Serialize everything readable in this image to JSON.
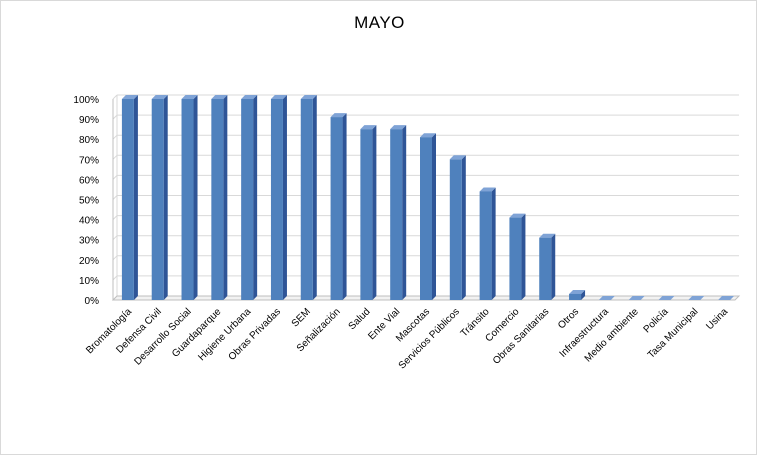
{
  "chart_data": {
    "type": "bar",
    "title": "MAYO",
    "xlabel": "",
    "ylabel": "",
    "ylim": [
      0,
      100
    ],
    "y_ticks": [
      "0%",
      "10%",
      "20%",
      "30%",
      "40%",
      "50%",
      "60%",
      "70%",
      "80%",
      "90%",
      "100%"
    ],
    "grid": true,
    "legend": "none",
    "style": "3d-column",
    "bar_color": "#4f81bd",
    "categories": [
      "Bromatología",
      "Defensa Civil",
      "Desarrollo Social",
      "Guardaparque",
      "Higiene Urbana",
      "Obras Privadas",
      "SEM",
      "Señalización",
      "Salud",
      "Ente Vial",
      "Mascotas",
      "Servicios Públicos",
      "Tránsito",
      "Comercio",
      "Obras Sanitarias",
      "Otros",
      "Infraestructura",
      "Medio ambiente",
      "Policía",
      "Tasa Municipal",
      "Usina"
    ],
    "values": [
      100,
      100,
      100,
      100,
      100,
      100,
      100,
      91,
      85,
      85,
      81,
      70,
      54,
      41,
      31,
      3,
      0,
      0,
      0,
      0,
      0
    ]
  }
}
